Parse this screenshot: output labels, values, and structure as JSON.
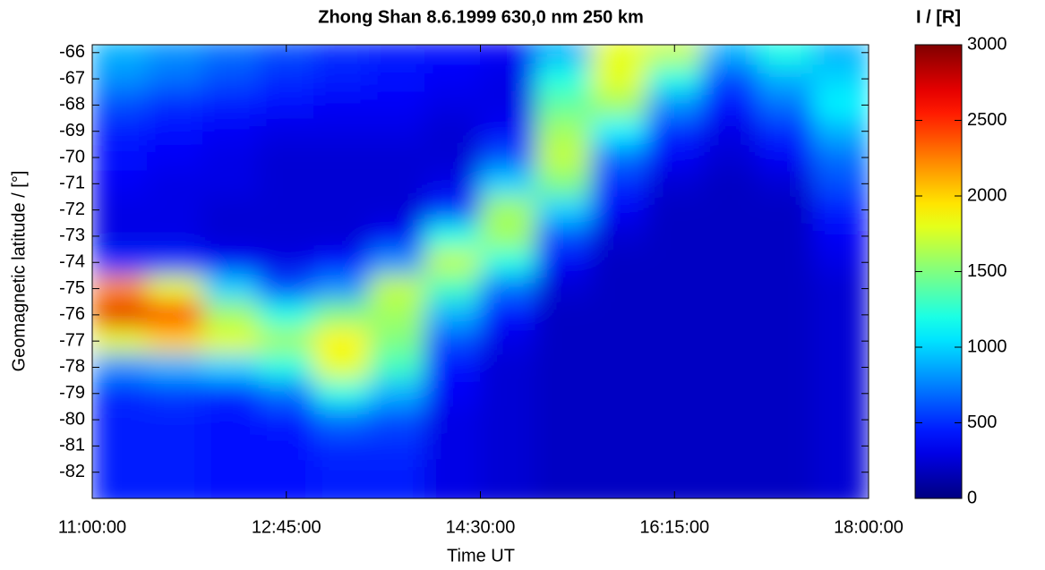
{
  "chart_data": {
    "type": "heatmap",
    "title": "Zhong Shan  8.6.1999  630,0 nm  250 km",
    "xlabel": "Time UT",
    "ylabel": "Geomagnetic latitude / [°]",
    "colorbar_label": "I / [R]",
    "colormap": "jet",
    "x": [
      11.25,
      11.75,
      12.25,
      12.75,
      13.25,
      13.75,
      14.25,
      14.75,
      15.25,
      15.75,
      16.25,
      16.75,
      17.25,
      17.75
    ],
    "y": [
      -66,
      -67,
      -68,
      -69,
      -70,
      -71,
      -72,
      -73,
      -74,
      -75,
      -76,
      -77,
      -78,
      -79,
      -80,
      -81,
      -82,
      -83
    ],
    "z": [
      [
        900,
        800,
        700,
        600,
        500,
        450,
        400,
        350,
        900,
        1800,
        1700,
        900,
        1200,
        900
      ],
      [
        800,
        700,
        600,
        500,
        450,
        400,
        350,
        300,
        1200,
        1800,
        1200,
        600,
        900,
        1000
      ],
      [
        600,
        500,
        450,
        400,
        350,
        350,
        300,
        300,
        1400,
        1600,
        800,
        400,
        700,
        1100
      ],
      [
        450,
        400,
        350,
        300,
        300,
        300,
        250,
        350,
        1600,
        1100,
        500,
        300,
        500,
        900
      ],
      [
        400,
        350,
        300,
        250,
        250,
        250,
        250,
        600,
        1700,
        700,
        350,
        250,
        350,
        700
      ],
      [
        350,
        300,
        300,
        250,
        250,
        250,
        300,
        1000,
        1500,
        500,
        250,
        200,
        250,
        600
      ],
      [
        300,
        300,
        250,
        250,
        250,
        250,
        500,
        1600,
        1000,
        350,
        200,
        200,
        200,
        450
      ],
      [
        300,
        300,
        250,
        250,
        250,
        350,
        1200,
        1600,
        600,
        250,
        200,
        200,
        200,
        350
      ],
      [
        500,
        500,
        350,
        300,
        400,
        800,
        1700,
        1200,
        350,
        200,
        200,
        200,
        200,
        300
      ],
      [
        2200,
        1800,
        1000,
        600,
        800,
        1700,
        1300,
        700,
        250,
        200,
        200,
        200,
        200,
        250
      ],
      [
        2700,
        2500,
        1600,
        1200,
        1500,
        1600,
        900,
        400,
        200,
        200,
        200,
        200,
        200,
        250
      ],
      [
        1800,
        2000,
        1800,
        1600,
        1900,
        1500,
        600,
        300,
        200,
        200,
        200,
        200,
        200,
        250
      ],
      [
        800,
        900,
        1000,
        1200,
        1800,
        1300,
        400,
        250,
        200,
        200,
        200,
        200,
        200,
        250
      ],
      [
        500,
        550,
        500,
        700,
        1200,
        900,
        350,
        250,
        200,
        200,
        200,
        200,
        200,
        250
      ],
      [
        450,
        450,
        400,
        450,
        700,
        600,
        300,
        250,
        200,
        200,
        200,
        200,
        200,
        250
      ],
      [
        450,
        450,
        400,
        400,
        500,
        500,
        300,
        250,
        200,
        200,
        200,
        200,
        200,
        250
      ],
      [
        450,
        450,
        400,
        400,
        450,
        450,
        300,
        250,
        200,
        200,
        200,
        200,
        200,
        250
      ],
      [
        450,
        450,
        400,
        400,
        450,
        450,
        300,
        250,
        200,
        200,
        200,
        200,
        200,
        250
      ]
    ],
    "xlim": [
      11,
      18
    ],
    "xticks": [
      {
        "value": 11,
        "label": "11:00:00"
      },
      {
        "value": 12.75,
        "label": "12:45:00"
      },
      {
        "value": 14.5,
        "label": "14:30:00"
      },
      {
        "value": 16.25,
        "label": "16:15:00"
      },
      {
        "value": 18,
        "label": "18:00:00"
      }
    ],
    "ylim": [
      -83,
      -65.7
    ],
    "yticks": [
      -66,
      -67,
      -68,
      -69,
      -70,
      -71,
      -72,
      -73,
      -74,
      -75,
      -76,
      -77,
      -78,
      -79,
      -80,
      -81,
      -82
    ],
    "clim": [
      0,
      3000
    ],
    "cticks": [
      0,
      500,
      1000,
      1500,
      2000,
      2500,
      3000
    ]
  }
}
